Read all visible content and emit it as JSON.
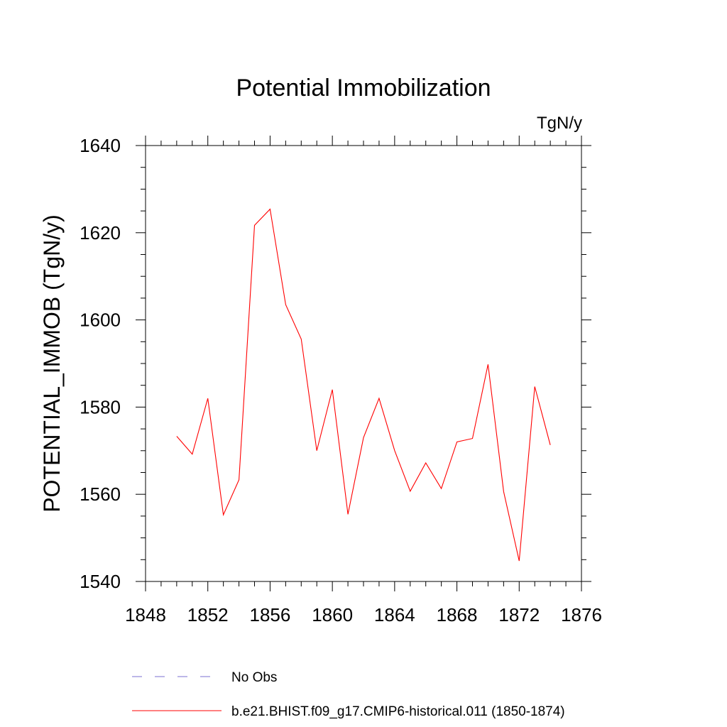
{
  "chart_data": {
    "type": "line",
    "title": "Potential Immobilization",
    "units_label": "TgN/y",
    "ylabel": "POTENTIAL_IMMOB  (TgN/y)",
    "xlabel": "",
    "xlim": [
      1848,
      1876
    ],
    "ylim": [
      1540,
      1640
    ],
    "xticks": [
      1848,
      1852,
      1856,
      1860,
      1864,
      1868,
      1872,
      1876
    ],
    "yticks": [
      1540,
      1560,
      1580,
      1600,
      1620,
      1640
    ],
    "grid": false,
    "series": [
      {
        "name": "b.e21.BHIST.f09_g17.CMIP6-historical.011 (1850-1874)",
        "color": "#ff0000",
        "style": "solid",
        "x": [
          1850,
          1851,
          1852,
          1853,
          1854,
          1855,
          1856,
          1857,
          1858,
          1859,
          1860,
          1861,
          1862,
          1863,
          1864,
          1865,
          1866,
          1867,
          1868,
          1869,
          1870,
          1871,
          1872,
          1873,
          1874
        ],
        "y": [
          1573.3,
          1569.2,
          1582.0,
          1555.3,
          1563.3,
          1621.7,
          1625.4,
          1603.5,
          1595.6,
          1570.0,
          1584.0,
          1555.4,
          1573.0,
          1582.0,
          1570.0,
          1560.7,
          1567.2,
          1561.3,
          1572.0,
          1572.8,
          1589.8,
          1560.6,
          1544.7,
          1584.7,
          1571.3
        ]
      }
    ],
    "legend": [
      {
        "label": "No Obs",
        "color": "#7b6fd0",
        "style": "dashed"
      },
      {
        "label": "b.e21.BHIST.f09_g17.CMIP6-historical.011 (1850-1874)",
        "color": "#ff0000",
        "style": "solid"
      }
    ],
    "legend_placement": "bottom"
  }
}
